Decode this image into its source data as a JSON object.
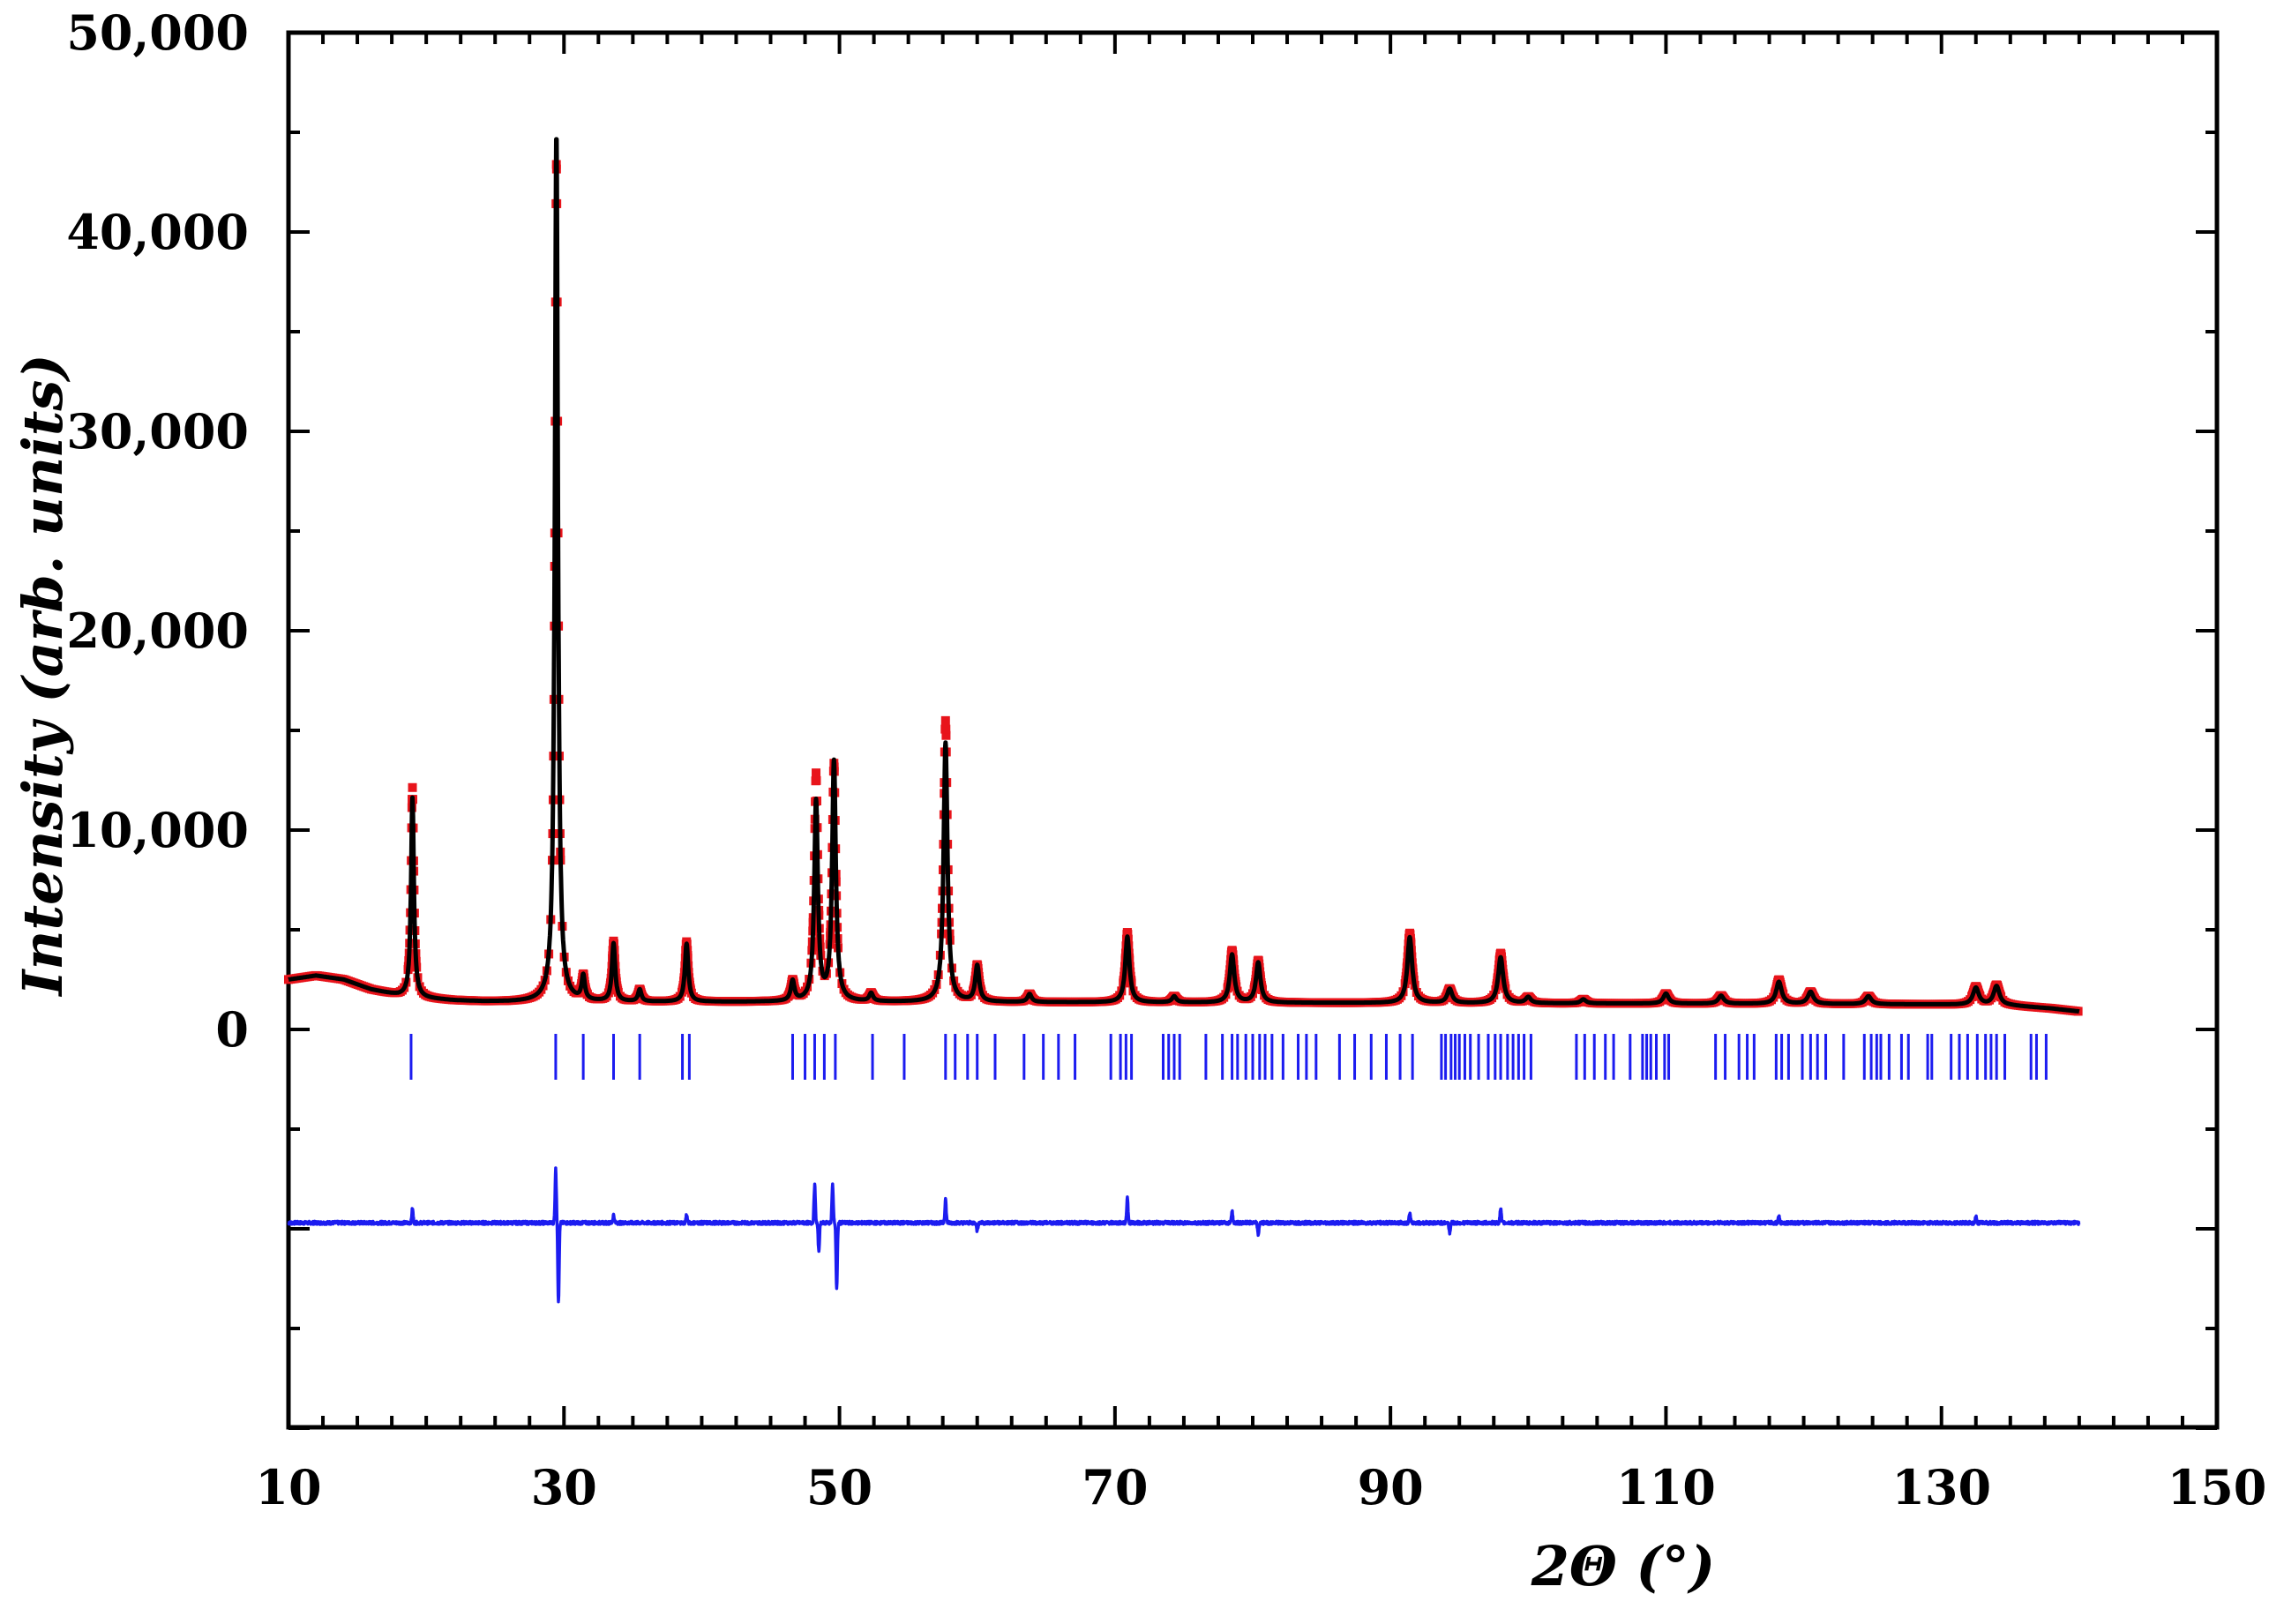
{
  "chart_data": {
    "type": "line",
    "xlabel": "2Θ (°)",
    "ylabel": "Intensity (arb. units)",
    "xlim": [
      10,
      150
    ],
    "ylim": [
      -20000,
      50000
    ],
    "x_ticks": [
      10,
      30,
      50,
      70,
      90,
      110,
      130,
      150
    ],
    "x_tick_labels": [
      "10",
      "30",
      "50",
      "70",
      "90",
      "110",
      "130",
      "150"
    ],
    "y_ticks": [
      0,
      10000,
      20000,
      30000,
      40000,
      50000
    ],
    "y_tick_labels": [
      "0",
      "10,000",
      "20,000",
      "30,000",
      "40,000",
      "50,000"
    ],
    "grid": false,
    "legend": "none",
    "colors": {
      "observed": "#e8141b",
      "calculated": "#000000",
      "difference": "#1c1cf0",
      "reflections": "#1c1cf0"
    },
    "background": {
      "x": [
        10,
        12,
        14,
        16,
        18,
        20,
        22,
        24,
        26,
        28,
        30,
        40,
        60,
        80,
        100,
        120,
        130,
        135,
        138,
        140
      ],
      "y": [
        2500,
        2700,
        2500,
        2000,
        1700,
        1550,
        1450,
        1400,
        1380,
        1380,
        1370,
        1380,
        1370,
        1340,
        1310,
        1280,
        1250,
        1200,
        1050,
        900
      ]
    },
    "peaks": {
      "x": [
        19.0,
        29.45,
        31.4,
        33.6,
        35.5,
        38.9,
        46.6,
        48.3,
        49.6,
        52.3,
        57.7,
        60.0,
        63.8,
        70.9,
        74.3,
        78.5,
        80.4,
        91.4,
        94.3,
        98.0,
        100.0,
        104.0,
        110.0,
        114.0,
        118.2,
        120.5,
        124.7,
        132.5,
        134.0
      ],
      "height_obs": [
        10500,
        42000,
        1200,
        3000,
        600,
        3000,
        1000,
        11300,
        11800,
        400,
        14100,
        1800,
        400,
        3500,
        300,
        2600,
        2100,
        3500,
        700,
        2500,
        300,
        200,
        500,
        400,
        1200,
        600,
        400,
        900,
        1000
      ],
      "height_calc": [
        10000,
        43500,
        1200,
        2900,
        600,
        2900,
        1000,
        10000,
        12000,
        400,
        13000,
        1800,
        400,
        3300,
        300,
        2400,
        2000,
        3300,
        700,
        2300,
        300,
        200,
        500,
        400,
        1100,
        600,
        400,
        850,
        950
      ]
    },
    "reflection_positions": [
      18.9,
      29.4,
      31.4,
      33.6,
      35.5,
      38.6,
      39.1,
      46.6,
      47.5,
      48.2,
      48.9,
      49.7,
      52.4,
      54.7,
      57.7,
      58.4,
      59.3,
      60.0,
      61.3,
      63.4,
      64.8,
      65.9,
      67.1,
      69.7,
      70.4,
      70.8,
      71.2,
      73.5,
      73.9,
      74.3,
      74.7,
      76.6,
      77.8,
      78.5,
      78.9,
      79.5,
      80.0,
      80.5,
      80.9,
      81.4,
      82.2,
      83.3,
      83.9,
      84.6,
      86.3,
      87.4,
      88.6,
      89.7,
      90.7,
      91.6,
      93.7,
      94.0,
      94.4,
      94.7,
      95.0,
      95.4,
      95.8,
      96.4,
      97.1,
      97.6,
      98.0,
      98.5,
      98.9,
      99.3,
      99.7,
      100.2,
      103.5,
      104.1,
      104.8,
      105.6,
      106.2,
      107.4,
      108.3,
      108.6,
      108.9,
      109.3,
      109.9,
      110.2,
      113.6,
      114.3,
      115.3,
      115.9,
      116.4,
      118.0,
      118.4,
      118.9,
      119.9,
      120.5,
      121.0,
      121.6,
      122.9,
      124.4,
      124.9,
      125.3,
      125.6,
      126.2,
      127.1,
      127.6,
      129.0,
      129.3,
      130.7,
      131.3,
      131.9,
      132.6,
      133.2,
      133.6,
      134.0,
      134.6,
      136.5,
      136.9,
      137.6
    ],
    "difference_offset": -9700,
    "difference_spikes": {
      "x": [
        19.0,
        29.4,
        29.6,
        33.6,
        38.9,
        48.2,
        48.5,
        49.5,
        49.8,
        57.7,
        60.0,
        70.9,
        78.5,
        80.4,
        91.4,
        94.3,
        98.0,
        118.2,
        132.5
      ],
      "y": [
        700,
        2700,
        -3900,
        400,
        400,
        1900,
        -1400,
        1900,
        -3300,
        1200,
        -400,
        1300,
        600,
        -600,
        500,
        -500,
        700,
        300,
        300
      ]
    }
  }
}
